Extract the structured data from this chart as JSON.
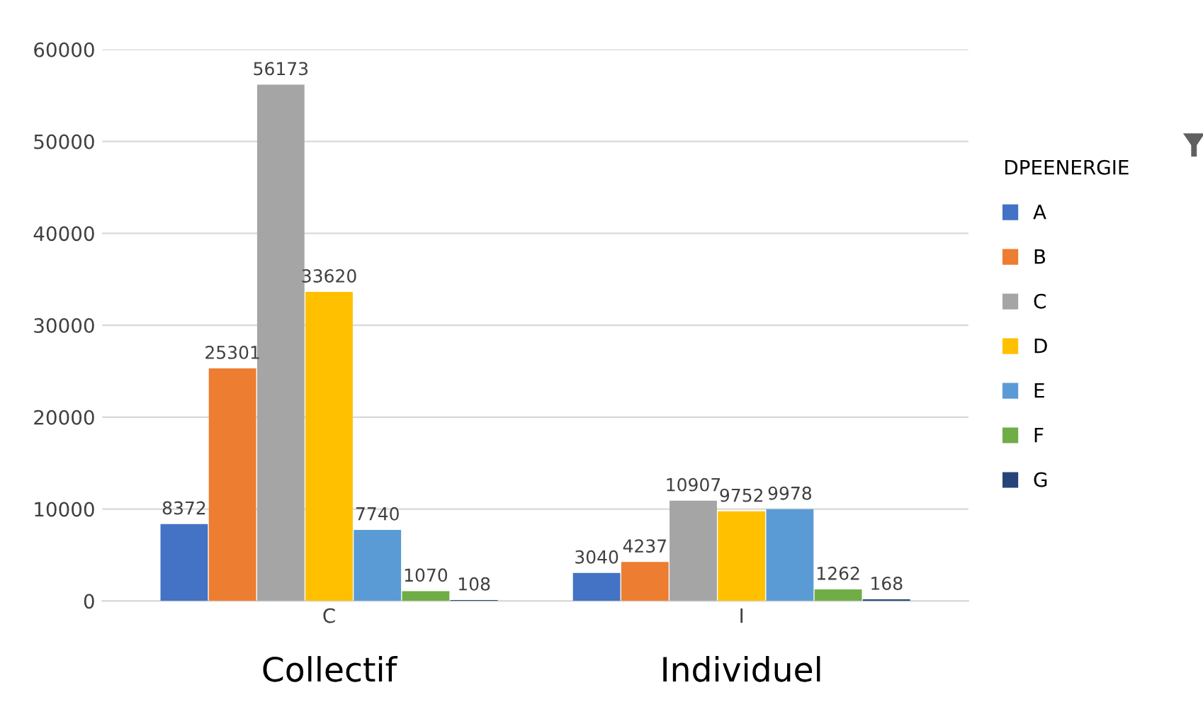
{
  "chart_data": {
    "type": "bar",
    "categories": [
      "C",
      "I"
    ],
    "series": [
      {
        "name": "A",
        "color": "#4472c4",
        "values": [
          8372,
          3040
        ]
      },
      {
        "name": "B",
        "color": "#ed7d31",
        "values": [
          25301,
          4237
        ]
      },
      {
        "name": "C",
        "color": "#a5a5a5",
        "values": [
          56173,
          10907
        ]
      },
      {
        "name": "D",
        "color": "#ffc000",
        "values": [
          33620,
          9752
        ]
      },
      {
        "name": "E",
        "color": "#5b9bd5",
        "values": [
          7740,
          9978
        ]
      },
      {
        "name": "F",
        "color": "#70ad47",
        "values": [
          1070,
          1262
        ]
      },
      {
        "name": "G",
        "color": "#264478",
        "values": [
          108,
          168
        ]
      }
    ],
    "legend_title": "DPEENERGIE",
    "legend": "right",
    "grid": "y",
    "data_labels": true,
    "ylim": [
      0,
      60000
    ],
    "yticks": [
      0,
      10000,
      20000,
      30000,
      40000,
      50000,
      60000
    ],
    "annotations": [
      "Collectif",
      "Individuel"
    ]
  }
}
